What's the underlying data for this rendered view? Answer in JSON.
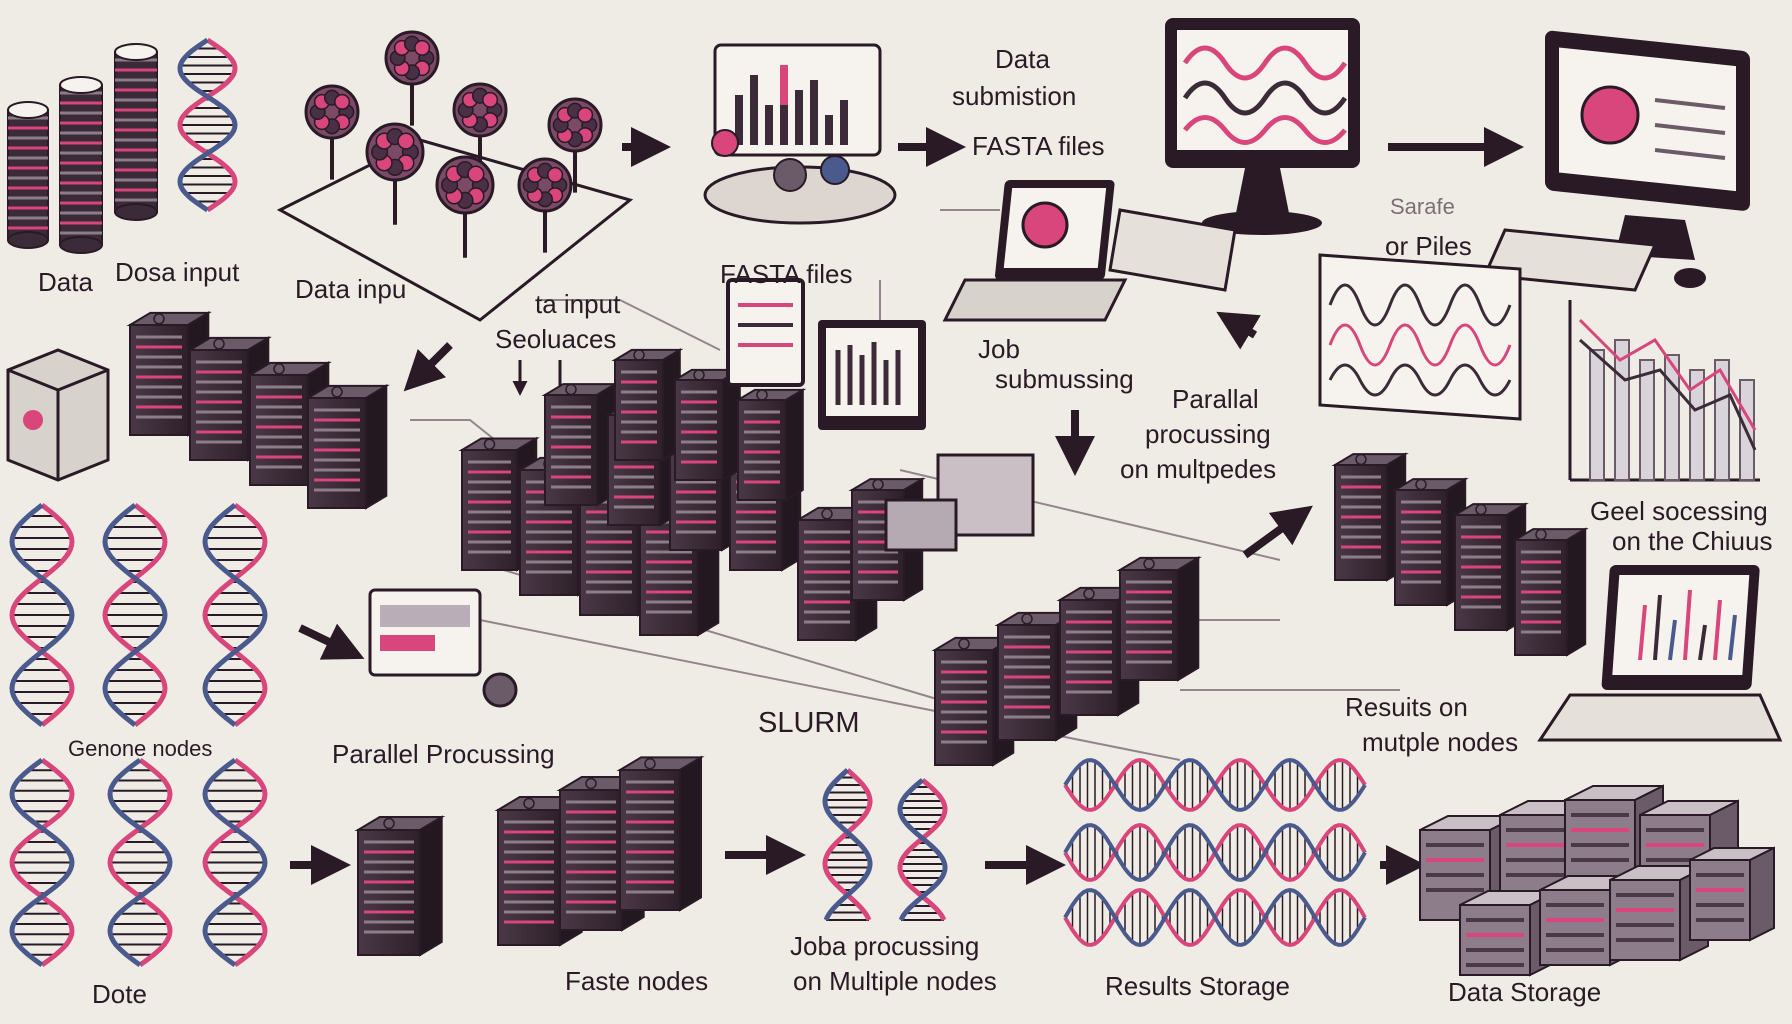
{
  "labels": {
    "data": "Data",
    "dosa_input": "Dosa input",
    "data_inpu": "Data inpu",
    "ta_input": "ta input",
    "seoluaces": "Seoluaces",
    "fasta_files_mid": "FASTA files",
    "data_submission_1": "Data",
    "data_submission_2": "submistion",
    "fasta_files_top": "FASTA files",
    "job_submussing_1": "Job",
    "job_submussing_2": "submussing",
    "parallal_1": "Parallal",
    "parallal_2": "procussing",
    "parallal_3": "on multpedes",
    "sarafe_1": "Sarafe",
    "sarafe_2": "or  Piles",
    "geel_1": "Geel socessing",
    "geel_2": "on the Chiuus",
    "genone_nodes": "Genone nodes",
    "parallel_procussing": "Parallel Procussing",
    "slurm": "SLURM",
    "results_on_1": "Resuits on",
    "results_on_2": "mutple nodes",
    "dote": "Dote",
    "faste_nodes": "Faste nodes",
    "joba_1": "Joba procussing",
    "joba_2": "on Multiple nodes",
    "results_storage": "Results Storage",
    "data_storage": "Data Storage"
  },
  "colors": {
    "ink": "#2a1a26",
    "server": "#3b2a38",
    "server_light": "#6b5a67",
    "accent": "#d8467c",
    "dna_blue": "#4b5a8c",
    "background": "#efece6"
  },
  "icons": [
    "server-rack-icon",
    "dna-helix-icon",
    "monitor-icon",
    "laptop-icon",
    "arrow-icon",
    "tree-cluster-icon",
    "disk-stack-icon",
    "data-storage-icon"
  ]
}
